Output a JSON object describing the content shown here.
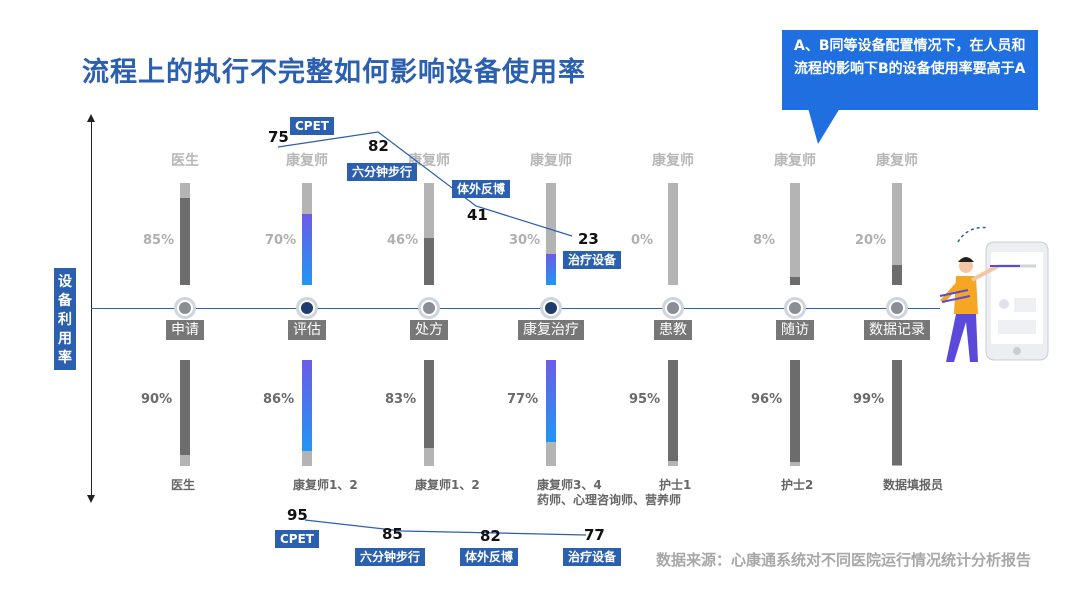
{
  "title": "流程上的执行不完整如何影响设备使用率",
  "callout": "A、B同等设备配置情况下，在人员和流程的影响下B的设备使用率要高于A",
  "y_axis_label": "设备利用率",
  "source": "数据来源：心康通系统对不同医院运行情况统计分析报告",
  "colors": {
    "blue": "#2b5fb0",
    "gradient_top": "#6b5ce7",
    "gradient_bottom": "#2196f3",
    "gray_dark": "#707070",
    "gray_light": "#aaaaaa"
  },
  "chart_data": {
    "type": "bar",
    "categories": [
      "申请",
      "评估",
      "处方",
      "康复治疗",
      "患教",
      "随访",
      "数据记录"
    ],
    "hospital_a": {
      "roles": [
        "医生",
        "康复师",
        "康复师",
        "康复师",
        "康复师",
        "康复师",
        "康复师"
      ],
      "utilization": [
        85,
        70,
        46,
        30,
        0,
        8,
        20
      ],
      "utilization_labels": [
        "85%",
        "70%",
        "46%",
        "30%",
        "0%",
        "8%",
        "20%"
      ],
      "equipment_usage": [
        {
          "label": "CPET",
          "value": 75
        },
        {
          "label": "六分钟步行",
          "value": 82
        },
        {
          "label": "体外反博",
          "value": 41
        },
        {
          "label": "治疗设备",
          "value": 23
        }
      ]
    },
    "hospital_b": {
      "roles": [
        "医生",
        "康复师1、2",
        "康复师1、2",
        "康复师3、4\n药师、心理咨询师、营养师",
        "护士1",
        "护士2",
        "数据填报员"
      ],
      "utilization": [
        90,
        86,
        83,
        77,
        95,
        96,
        99
      ],
      "utilization_labels": [
        "90%",
        "86%",
        "83%",
        "77%",
        "95%",
        "96%",
        "99%"
      ],
      "equipment_usage": [
        {
          "label": "CPET",
          "value": 95
        },
        {
          "label": "六分钟步行",
          "value": 85
        },
        {
          "label": "体外反博",
          "value": 82
        },
        {
          "label": "治疗设备",
          "value": 77
        }
      ]
    },
    "highlighted_stages": [
      "评估",
      "康复治疗"
    ]
  }
}
